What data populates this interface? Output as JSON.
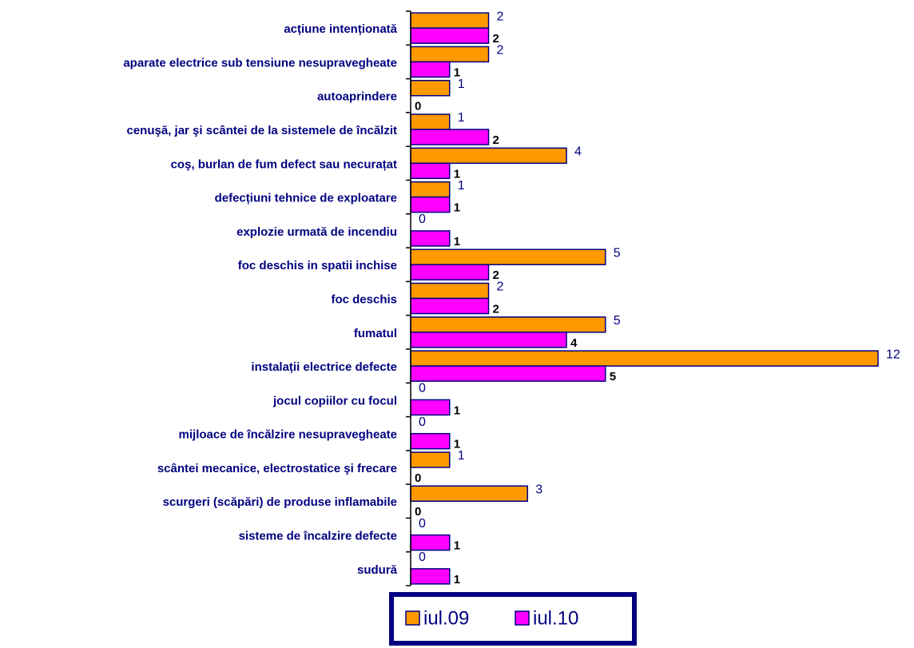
{
  "chart_data": {
    "type": "hbar",
    "categories": [
      "acțiune intenționată",
      "aparate electrice sub tensiune nesupravegheate",
      "autoaprindere",
      "cenuşă, jar şi scântei de la sistemele de încălzit",
      "coş, burlan  de fum defect sau necurațat",
      "defecțiuni tehnice de exploatare",
      "explozie urmată de incendiu",
      "foc deschis in spatii inchise",
      "foc deschis",
      "fumatul",
      "instalații electrice defecte",
      "jocul copiilor cu focul",
      "mijloace de încălzire nesupravegheate",
      "scântei mecanice, electrostatice şi frecare",
      "scurgeri (scăpări) de produse inflamabile",
      "sisteme de încalzire defecte",
      "sudură"
    ],
    "series": [
      {
        "name": "iul.09",
        "color": "#ff9900",
        "values": [
          2,
          2,
          1,
          1,
          4,
          1,
          0,
          5,
          2,
          5,
          12,
          0,
          0,
          1,
          3,
          0,
          0
        ]
      },
      {
        "name": "iul.10",
        "color": "#ff00ff",
        "values": [
          2,
          1,
          0,
          2,
          1,
          1,
          1,
          2,
          2,
          4,
          5,
          1,
          1,
          0,
          0,
          1,
          1
        ]
      }
    ],
    "xlim": [
      0,
      12
    ]
  }
}
